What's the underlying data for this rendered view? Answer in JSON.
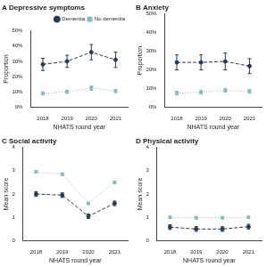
{
  "chart_data": [
    {
      "type": "line",
      "panel": "A",
      "title": "Depressive symptoms",
      "x_label": "NHATS round year",
      "y_label": "Proportion",
      "categories": [
        "2018",
        "2019",
        "2020",
        "2021"
      ],
      "ylim": [
        0,
        50
      ],
      "yticks": [
        {
          "value": 0,
          "label": "0%"
        },
        {
          "value": 10,
          "label": "10%"
        },
        {
          "value": 20,
          "label": "20%"
        },
        {
          "value": 30,
          "label": "30%"
        },
        {
          "value": 40,
          "label": "40%"
        },
        {
          "value": 50,
          "label": "50%"
        }
      ],
      "grid": false,
      "legend": "top-right",
      "series": [
        {
          "name": "Dementia",
          "color": "#2b3a4f",
          "marker": "circle",
          "line_style": "dashed",
          "values": [
            28,
            30,
            36,
            31
          ],
          "ci_low": [
            24,
            26,
            31,
            26
          ],
          "ci_high": [
            32,
            34,
            41,
            36
          ]
        },
        {
          "name": "No dementia",
          "color": "#86b9bd",
          "marker": "square",
          "line_style": "dotted",
          "values": [
            9,
            10,
            12.5,
            10.5
          ],
          "ci_low": [
            8,
            9,
            11,
            9.5
          ],
          "ci_high": [
            10,
            11,
            14,
            11.5
          ]
        }
      ]
    },
    {
      "type": "line",
      "panel": "B",
      "title": "Anxiety",
      "x_label": "NHATS round year",
      "y_label": "Proportion",
      "categories": [
        "2018",
        "2019",
        "2020",
        "2021"
      ],
      "ylim": [
        0,
        50
      ],
      "yticks": [
        {
          "value": 0,
          "label": "0%"
        },
        {
          "value": 10,
          "label": "10%"
        },
        {
          "value": 20,
          "label": "20%"
        },
        {
          "value": 30,
          "label": "30%"
        },
        {
          "value": 40,
          "label": "40%"
        },
        {
          "value": 50,
          "label": "50%"
        }
      ],
      "grid": false,
      "series": [
        {
          "name": "Dementia",
          "color": "#2b3a4f",
          "marker": "circle",
          "line_style": "dashed",
          "values": [
            24,
            24,
            24.5,
            22
          ],
          "ci_low": [
            20,
            20,
            20,
            18
          ],
          "ci_high": [
            28,
            28,
            29,
            26
          ]
        },
        {
          "name": "No dementia",
          "color": "#86b9bd",
          "marker": "square",
          "line_style": "dotted",
          "values": [
            7.5,
            8,
            9,
            8.5
          ],
          "ci_low": [
            6.5,
            7,
            8,
            7.5
          ],
          "ci_high": [
            8.5,
            9,
            10,
            9.5
          ]
        }
      ]
    },
    {
      "type": "line",
      "panel": "C",
      "title": "Social activity",
      "x_label": "NHATS round year",
      "y_label": "Mean score",
      "categories": [
        "2018",
        "2019",
        "2020",
        "2021"
      ],
      "ylim": [
        0,
        4
      ],
      "yticks": [
        0,
        1,
        2,
        3,
        4
      ],
      "grid": false,
      "series": [
        {
          "name": "Dementia",
          "color": "#2b3a4f",
          "marker": "circle",
          "line_style": "dashed",
          "values": [
            2.0,
            1.95,
            1.05,
            1.6
          ],
          "ci_low": [
            1.9,
            1.85,
            0.95,
            1.5
          ],
          "ci_high": [
            2.1,
            2.05,
            1.15,
            1.7
          ]
        },
        {
          "name": "No dementia",
          "color": "#86b9bd",
          "marker": "square",
          "line_style": "dotted",
          "values": [
            2.95,
            2.85,
            1.6,
            2.5
          ],
          "ci_low": [
            2.9,
            2.8,
            1.55,
            2.45
          ],
          "ci_high": [
            3.0,
            2.9,
            1.65,
            2.55
          ]
        }
      ]
    },
    {
      "type": "line",
      "panel": "D",
      "title": "Physical activity",
      "x_label": "NHATS round year",
      "y_label": "Mean score",
      "categories": [
        "2018",
        "2019",
        "2020",
        "2021"
      ],
      "ylim": [
        0,
        4
      ],
      "yticks": [
        0,
        1,
        2,
        3,
        4
      ],
      "grid": false,
      "series": [
        {
          "name": "Dementia",
          "color": "#2b3a4f",
          "marker": "circle",
          "line_style": "dashed",
          "values": [
            0.58,
            0.5,
            0.5,
            0.6
          ],
          "ci_low": [
            0.48,
            0.4,
            0.4,
            0.5
          ],
          "ci_high": [
            0.68,
            0.6,
            0.6,
            0.7
          ]
        },
        {
          "name": "No dementia",
          "color": "#86b9bd",
          "marker": "square",
          "line_style": "dotted",
          "values": [
            1.0,
            0.98,
            0.98,
            1.0
          ],
          "ci_low": [
            0.96,
            0.94,
            0.94,
            0.96
          ],
          "ci_high": [
            1.04,
            1.02,
            1.02,
            1.04
          ]
        }
      ]
    }
  ]
}
